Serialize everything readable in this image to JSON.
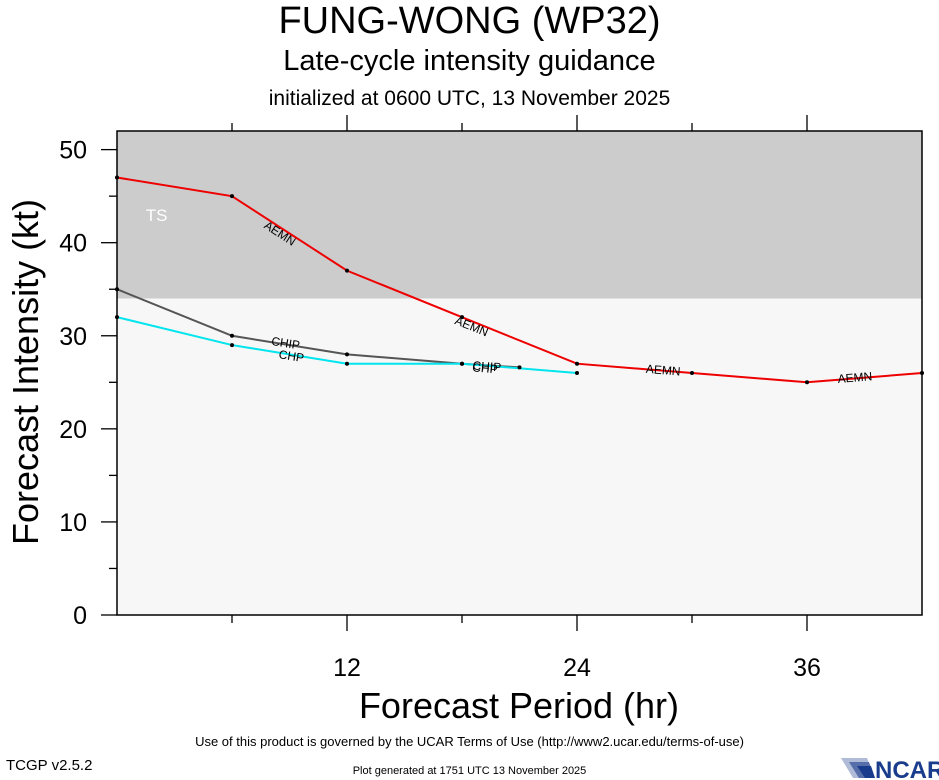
{
  "header": {
    "title": "FUNG-WONG (WP32)",
    "subtitle": "Late-cycle intensity guidance",
    "init": "initialized at 0600 UTC, 13 November 2025"
  },
  "footer": {
    "terms": "Use of this product is governed by the UCAR Terms of Use (http://www2.ucar.edu/terms-of-use)",
    "version": "TCGP v2.5.2",
    "generated": "Plot generated at 1751 UTC   13 November 2025",
    "logo_text": "NCAR"
  },
  "chart_data": {
    "type": "line",
    "xlabel": "Forecast Period (hr)",
    "ylabel": "Forecast Intensity (kt)",
    "xlim": [
      0,
      42
    ],
    "ylim": [
      0,
      52
    ],
    "xticks": [
      12,
      24,
      36
    ],
    "yticks": [
      0,
      10,
      20,
      30,
      40,
      50
    ],
    "grid": false,
    "bands": [
      {
        "label": "TS",
        "from": 34,
        "to": 52,
        "color": "#cccccc"
      },
      {
        "label": "",
        "from": 0,
        "to": 34,
        "color": "#f7f7f7"
      }
    ],
    "series": [
      {
        "name": "AEMN",
        "color": "#ee0000",
        "x": [
          0,
          6,
          12,
          18,
          24,
          30,
          36,
          42
        ],
        "y": [
          47,
          45,
          37,
          32,
          27,
          26,
          25,
          26
        ]
      },
      {
        "name": "CHIP",
        "color": "#555555",
        "x": [
          0,
          6,
          12,
          18,
          21
        ],
        "y": [
          35,
          30,
          28,
          27,
          26.6
        ]
      },
      {
        "name": "CHP",
        "color": "#00e5ee",
        "x": [
          0,
          6,
          12,
          18,
          24
        ],
        "y": [
          32,
          29,
          27,
          27,
          26
        ]
      }
    ],
    "labels": [
      {
        "text": "AEMN",
        "x": 8.5,
        "y": 41,
        "series": "AEMN"
      },
      {
        "text": "AEMN",
        "x": 18.5,
        "y": 31,
        "series": "AEMN"
      },
      {
        "text": "AEMN",
        "x": 28.5,
        "y": 26.3,
        "series": "AEMN"
      },
      {
        "text": "AEMN",
        "x": 38.5,
        "y": 25.5,
        "series": "AEMN"
      },
      {
        "text": "CHIP",
        "x": 8.8,
        "y": 29.2,
        "series": "CHIP"
      },
      {
        "text": "CHP",
        "x": 9.1,
        "y": 27.8,
        "series": "CHP"
      },
      {
        "text": "CHIP",
        "x": 19.3,
        "y": 26.7,
        "series": "CHIP"
      },
      {
        "text": "CHP",
        "x": 19.2,
        "y": 26.5,
        "series": "CHP"
      }
    ]
  }
}
